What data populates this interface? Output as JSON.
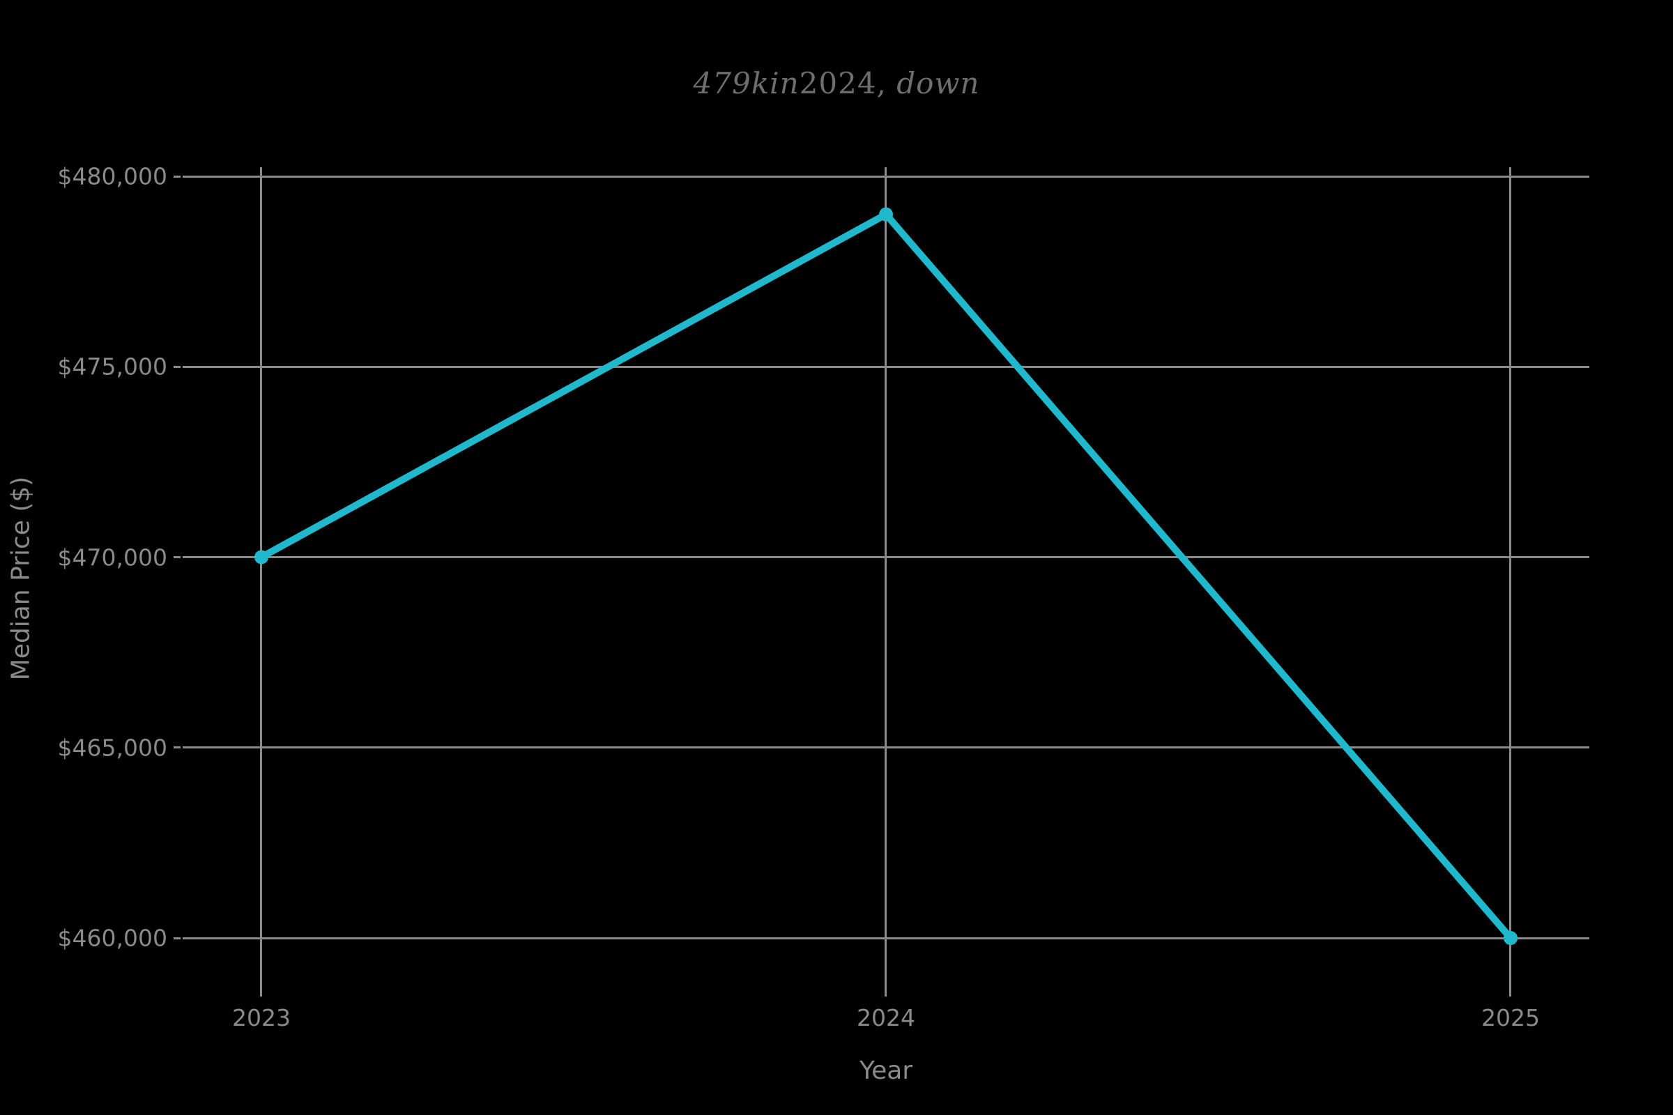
{
  "chart_data": {
    "type": "line",
    "title": "479kin2024, down",
    "title_segments": {
      "italic_lead": "479kin",
      "upright": "2024,",
      "italic_tail": "down"
    },
    "xlabel": "Year",
    "ylabel": "Median Price ($)",
    "x": [
      2023,
      2024,
      2025
    ],
    "xtick_labels": [
      "2023",
      "2024",
      "2025"
    ],
    "values": [
      470000,
      479000,
      460000
    ],
    "yticks": [
      460000,
      465000,
      470000,
      475000,
      480000
    ],
    "ytick_labels": [
      "$460,000",
      "$465,000",
      "$470,000",
      "$475,000",
      "$480,000"
    ],
    "ylim": [
      458700,
      480250
    ],
    "xlim": [
      2022.87,
      2025.13
    ],
    "grid": true,
    "legend_position": "none",
    "marker": "circle",
    "line_color": "#1fb8cd",
    "colors": {
      "background": "#000000",
      "grid": "#8a8a8a",
      "tick_labels": "#8a8a8a",
      "axis_labels": "#8a8a8a",
      "title": "#6e6e6e"
    }
  }
}
